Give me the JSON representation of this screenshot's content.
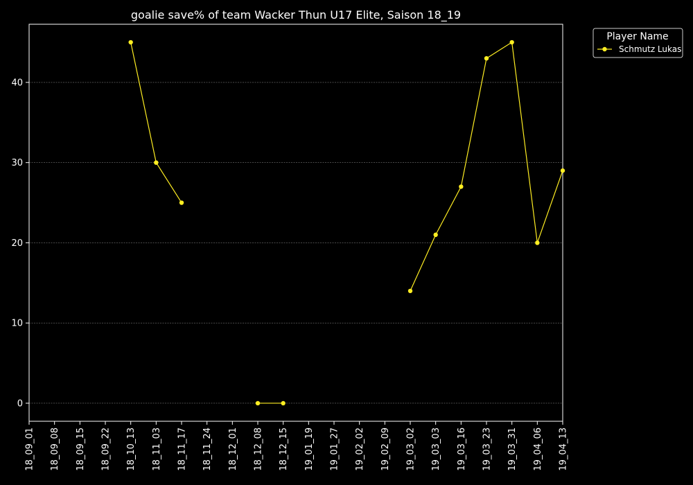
{
  "chart_data": {
    "type": "line",
    "title": "goalie save% of team Wacker Thun U17 Elite, Saison 18_19",
    "xlabel": "",
    "ylabel": "",
    "categories": [
      "18_09_01",
      "18_09_08",
      "18_09_15",
      "18_09_22",
      "18_10_13",
      "18_11_03",
      "18_11_17",
      "18_11_24",
      "18_12_01",
      "18_12_08",
      "18_12_15",
      "19_01_19",
      "19_01_27",
      "19_02_02",
      "19_02_09",
      "19_03_02",
      "19_03_03",
      "19_03_16",
      "19_03_23",
      "19_03_31",
      "19_04_06",
      "19_04_13"
    ],
    "ylim": [
      -2.25,
      47.25
    ],
    "yticks": [
      0,
      10,
      20,
      30,
      40
    ],
    "grid": true,
    "legend": {
      "title": "Player Name",
      "position": "top-right-outside"
    },
    "series": [
      {
        "name": "Schmutz Lukas",
        "color": "#ffee22",
        "values": [
          null,
          null,
          null,
          null,
          45,
          30,
          25,
          null,
          null,
          0,
          0,
          null,
          null,
          null,
          null,
          14,
          21,
          27,
          43,
          45,
          20,
          29
        ]
      }
    ]
  }
}
